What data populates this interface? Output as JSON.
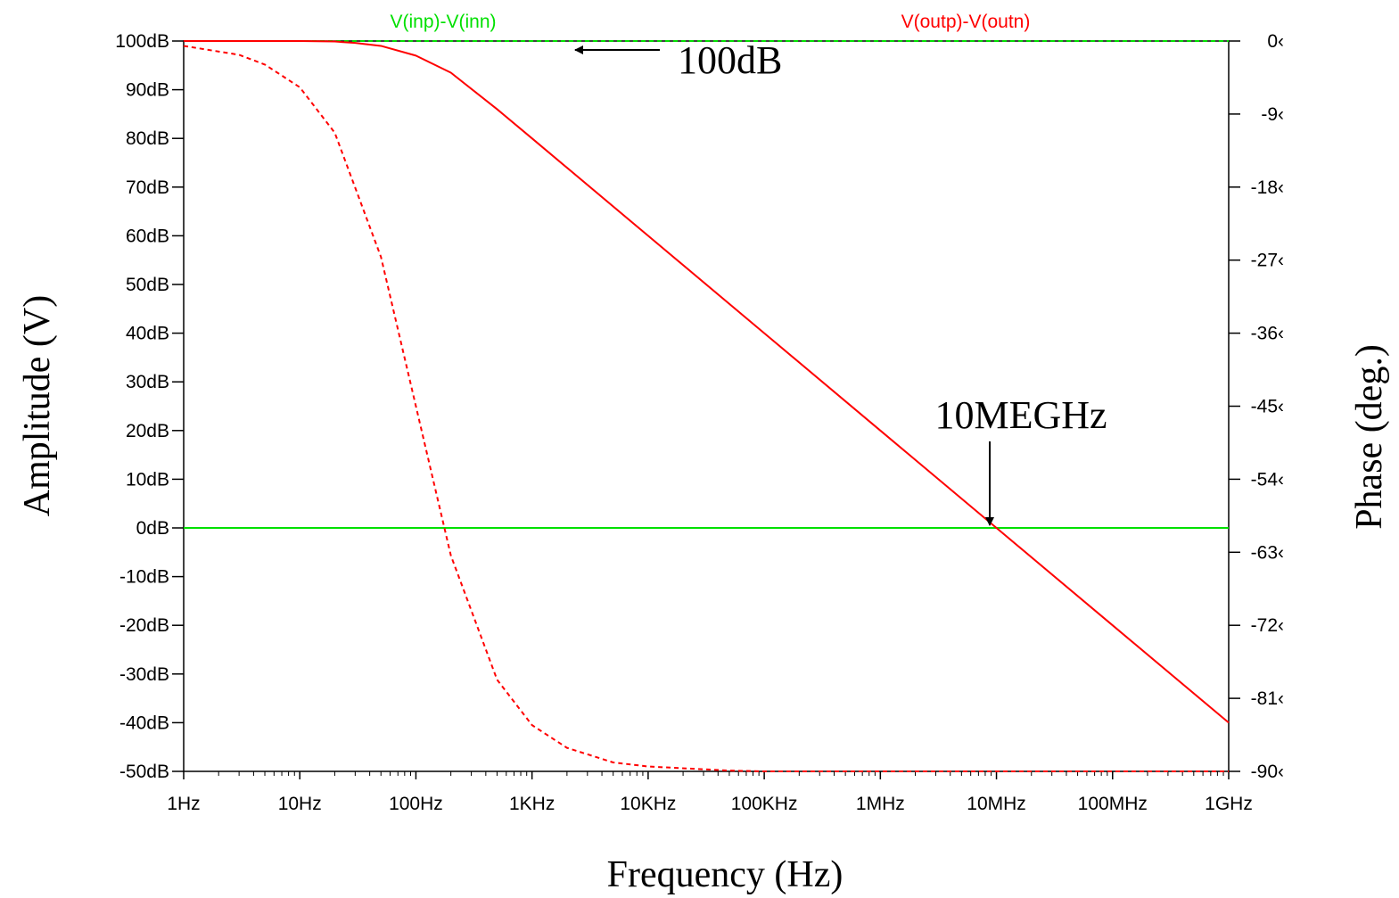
{
  "chart_data": {
    "type": "line",
    "xlabel": "Frequency (Hz)",
    "ylabel": "Amplitude (V)",
    "y2label": "Phase (deg.)",
    "xscale": "log",
    "xlim": [
      1,
      1000000000
    ],
    "ylim": [
      -50,
      100
    ],
    "y2lim": [
      -90,
      0
    ],
    "grid": false,
    "x_ticks": [
      {
        "value": 1,
        "label": "1Hz"
      },
      {
        "value": 10,
        "label": "10Hz"
      },
      {
        "value": 100,
        "label": "100Hz"
      },
      {
        "value": 1000,
        "label": "1KHz"
      },
      {
        "value": 10000,
        "label": "10KHz"
      },
      {
        "value": 100000,
        "label": "100KHz"
      },
      {
        "value": 1000000,
        "label": "1MHz"
      },
      {
        "value": 10000000,
        "label": "10MHz"
      },
      {
        "value": 100000000,
        "label": "100MHz"
      },
      {
        "value": 1000000000,
        "label": "1GHz"
      }
    ],
    "y_ticks": [
      {
        "value": 100,
        "label": "100dB"
      },
      {
        "value": 90,
        "label": "90dB"
      },
      {
        "value": 80,
        "label": "80dB"
      },
      {
        "value": 70,
        "label": "70dB"
      },
      {
        "value": 60,
        "label": "60dB"
      },
      {
        "value": 50,
        "label": "50dB"
      },
      {
        "value": 40,
        "label": "40dB"
      },
      {
        "value": 30,
        "label": "30dB"
      },
      {
        "value": 20,
        "label": "20dB"
      },
      {
        "value": 10,
        "label": "10dB"
      },
      {
        "value": 0,
        "label": "0dB"
      },
      {
        "value": -10,
        "label": "-10dB"
      },
      {
        "value": -20,
        "label": "-20dB"
      },
      {
        "value": -30,
        "label": "-30dB"
      },
      {
        "value": -40,
        "label": "-40dB"
      },
      {
        "value": -50,
        "label": "-50dB"
      }
    ],
    "y2_ticks": [
      {
        "value": 0,
        "label": "0‹"
      },
      {
        "value": -9,
        "label": "-9‹"
      },
      {
        "value": -18,
        "label": "-18‹"
      },
      {
        "value": -27,
        "label": "-27‹"
      },
      {
        "value": -36,
        "label": "-36‹"
      },
      {
        "value": -45,
        "label": "-45‹"
      },
      {
        "value": -54,
        "label": "-54‹"
      },
      {
        "value": -63,
        "label": "-63‹"
      },
      {
        "value": -72,
        "label": "-72‹"
      },
      {
        "value": -81,
        "label": "-81‹"
      },
      {
        "value": -90,
        "label": "-90‹"
      }
    ],
    "series": [
      {
        "name": "V(inp)-V(inn)",
        "color": "#00e000",
        "magnitude": {
          "x": [
            1,
            1000000000
          ],
          "y": [
            0,
            0
          ]
        },
        "phase": {
          "x": [
            1,
            1000000000
          ],
          "y": [
            0,
            0
          ]
        }
      },
      {
        "name": "V(outp)-V(outn)",
        "color": "#ff0000",
        "magnitude": {
          "x": [
            1,
            10,
            20,
            30,
            50,
            100,
            200,
            500,
            1000,
            10000,
            100000,
            1000000,
            10000000,
            100000000,
            1000000000
          ],
          "y": [
            100,
            100,
            99.9,
            99.6,
            99,
            97,
            93.5,
            86,
            80,
            60,
            40,
            20,
            0,
            -20,
            -40
          ]
        },
        "phase": {
          "x": [
            1,
            3,
            5,
            10,
            20,
            50,
            100,
            200,
            500,
            1000,
            2000,
            5000,
            10000,
            50000,
            100000,
            1000000,
            1000000000
          ],
          "y": [
            -0.6,
            -1.7,
            -2.9,
            -5.7,
            -11.3,
            -26.6,
            -45,
            -63.4,
            -78.7,
            -84.3,
            -87.1,
            -88.9,
            -89.4,
            -89.9,
            -90,
            -90,
            -90
          ]
        }
      }
    ],
    "annotations": [
      {
        "text": "100dB",
        "x": 10000,
        "y": 100
      },
      {
        "text": "10MEGHz",
        "x": 10000000,
        "y": 0
      }
    ]
  }
}
